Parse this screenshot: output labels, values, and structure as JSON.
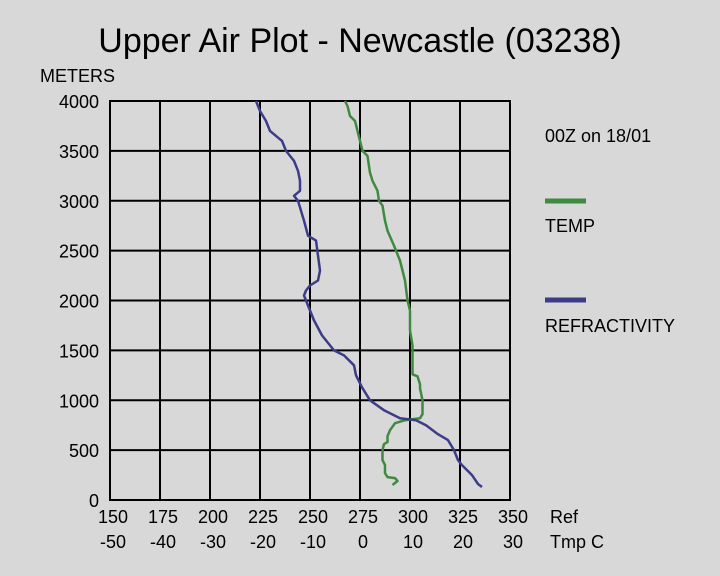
{
  "chart_data": {
    "type": "line",
    "title": "Upper Air Plot - Newcastle (03238)",
    "ylabel": "METERS",
    "time_label": "00Z on 18/01",
    "y_ticks": [
      "0",
      "500",
      "1000",
      "1500",
      "2000",
      "2500",
      "3000",
      "3500",
      "4000"
    ],
    "x_ticks_ref": [
      "150",
      "175",
      "200",
      "225",
      "250",
      "275",
      "300",
      "325",
      "350"
    ],
    "x_ticks_tmp": [
      "-50",
      "-40",
      "-30",
      "-20",
      "-10",
      "0",
      "10",
      "20",
      "30"
    ],
    "x_axis_label_ref": "Ref",
    "x_axis_label_tmp": "Tmp C",
    "xlim_ref": [
      150,
      350
    ],
    "xlim_tmp": [
      -50,
      30
    ],
    "ylim": [
      0,
      4000
    ],
    "grid": true,
    "series": [
      {
        "name": "TEMP",
        "axis": "tmp",
        "color": "#3f8a3f",
        "points": [
          [
            6.5,
            150
          ],
          [
            7.5,
            190
          ],
          [
            7.0,
            220
          ],
          [
            5.5,
            230
          ],
          [
            5.0,
            270
          ],
          [
            5.0,
            350
          ],
          [
            4.5,
            400
          ],
          [
            4.5,
            500
          ],
          [
            4.8,
            560
          ],
          [
            5.5,
            580
          ],
          [
            5.5,
            640
          ],
          [
            6.0,
            700
          ],
          [
            7.0,
            770
          ],
          [
            9.0,
            800
          ],
          [
            12.0,
            820
          ],
          [
            12.5,
            860
          ],
          [
            12.5,
            900
          ],
          [
            12.5,
            1000
          ],
          [
            12.0,
            1120
          ],
          [
            12.0,
            1160
          ],
          [
            11.5,
            1240
          ],
          [
            10.5,
            1260
          ],
          [
            10.5,
            1400
          ],
          [
            10.5,
            1550
          ],
          [
            10.0,
            1700
          ],
          [
            10.0,
            1900
          ],
          [
            9.5,
            2000
          ],
          [
            9.0,
            2200
          ],
          [
            8.0,
            2400
          ],
          [
            6.8,
            2550
          ],
          [
            5.5,
            2700
          ],
          [
            5.0,
            2800
          ],
          [
            4.5,
            2950
          ],
          [
            3.8,
            3000
          ],
          [
            3.5,
            3100
          ],
          [
            2.5,
            3200
          ],
          [
            2.0,
            3280
          ],
          [
            1.5,
            3450
          ],
          [
            0.5,
            3500
          ],
          [
            0.0,
            3600
          ],
          [
            -0.5,
            3700
          ],
          [
            -1.0,
            3800
          ],
          [
            -2.0,
            3850
          ],
          [
            -2.5,
            3950
          ],
          [
            -3.0,
            4000
          ]
        ]
      },
      {
        "name": "REFRACTIVITY",
        "axis": "ref",
        "color": "#3c3c88",
        "points": [
          [
            336,
            130
          ],
          [
            334,
            160
          ],
          [
            331,
            250
          ],
          [
            326,
            350
          ],
          [
            324,
            400
          ],
          [
            322,
            500
          ],
          [
            319,
            600
          ],
          [
            314,
            660
          ],
          [
            308,
            750
          ],
          [
            303,
            800
          ],
          [
            295,
            820
          ],
          [
            287,
            900
          ],
          [
            280,
            1000
          ],
          [
            276,
            1130
          ],
          [
            273,
            1250
          ],
          [
            272,
            1350
          ],
          [
            267,
            1450
          ],
          [
            262,
            1500
          ],
          [
            256,
            1650
          ],
          [
            252,
            1800
          ],
          [
            249,
            1950
          ],
          [
            247,
            2050
          ],
          [
            248,
            2100
          ],
          [
            250,
            2150
          ],
          [
            254,
            2200
          ],
          [
            255,
            2300
          ],
          [
            254,
            2450
          ],
          [
            253,
            2600
          ],
          [
            249,
            2650
          ],
          [
            247,
            2800
          ],
          [
            244,
            3000
          ],
          [
            242,
            3050
          ],
          [
            245,
            3100
          ],
          [
            245,
            3200
          ],
          [
            244,
            3300
          ],
          [
            242,
            3400
          ],
          [
            238,
            3500
          ],
          [
            236,
            3600
          ],
          [
            233,
            3650
          ],
          [
            230,
            3700
          ],
          [
            228,
            3800
          ],
          [
            225,
            3900
          ],
          [
            223,
            4000
          ]
        ]
      }
    ]
  }
}
